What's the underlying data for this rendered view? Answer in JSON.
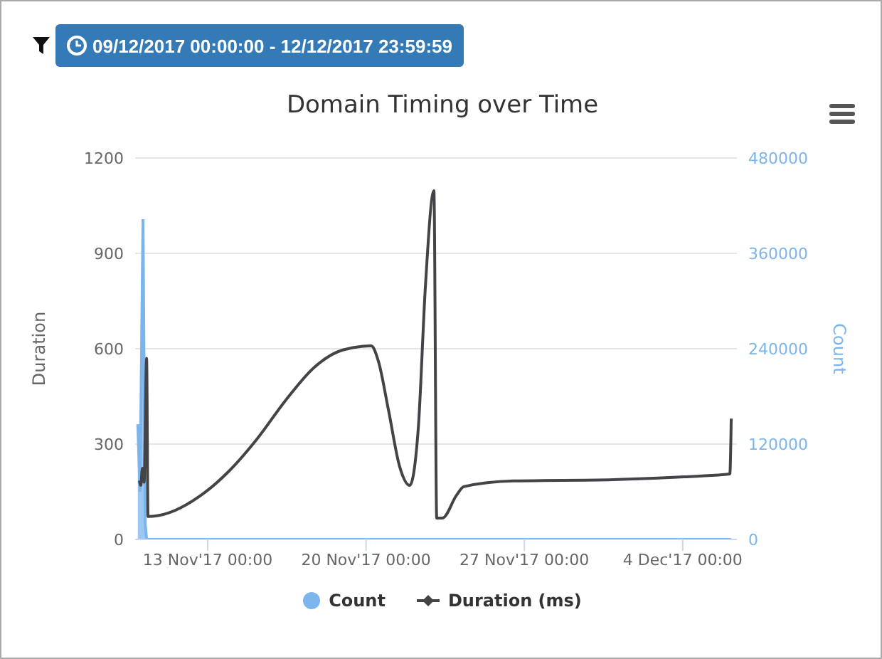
{
  "chart_data": {
    "type": "line",
    "title": "Domain Timing over Time",
    "ylabel": "Duration",
    "y2label": "Count",
    "annotations": [
      "09/12/2017 00:00:00 - 12/12/2017 23:59:59"
    ],
    "xlim": [
      "2017-11-09T19:00",
      "2017-12-06T09:30"
    ],
    "xticks": [
      {
        "value": "2017-11-13T00:00",
        "label": "13 Nov'17 00:00"
      },
      {
        "value": "2017-11-20T00:00",
        "label": "20 Nov'17 00:00"
      },
      {
        "value": "2017-11-27T00:00",
        "label": "27 Nov'17 00:00"
      },
      {
        "value": "2017-12-04T00:00",
        "label": "4 Dec'17 00:00"
      }
    ],
    "ylim": [
      0,
      1200
    ],
    "yticks": [
      0,
      300,
      600,
      900,
      1200
    ],
    "y2lim": [
      0,
      480000
    ],
    "y2ticks": [
      0,
      120000,
      240000,
      360000,
      480000
    ],
    "grid": "y",
    "legend": "bottom",
    "series": [
      {
        "name": "Count",
        "type": "area",
        "axis": "y2",
        "color": "#7cb5ec",
        "x": [
          "2017-11-09T21:50",
          "2017-11-10T00:10",
          "2017-11-10T03:20",
          "2017-11-10T05:40",
          "2017-11-10T07:10",
          "2017-11-15T00:00",
          "2017-11-25T00:00",
          "2017-12-06T03:30"
        ],
        "values": [
          145000,
          60000,
          403000,
          20000,
          0,
          0,
          0,
          0
        ]
      },
      {
        "name": "Duration (ms)",
        "color": "#434348",
        "x": [
          "2017-11-09T23:30",
          "2017-11-10T01:00",
          "2017-11-10T02:40",
          "2017-11-10T04:30",
          "2017-11-10T07:10",
          "2017-11-10T08:40",
          "2017-11-10T19:10",
          "2017-11-12T21:00",
          "2017-11-13T22:35",
          "2017-11-15T04:50",
          "2017-11-16T11:00",
          "2017-11-17T17:15",
          "2017-11-18T23:20",
          "2017-11-20T05:30",
          "2017-11-20T13:10",
          "2017-11-20T23:45",
          "2017-11-21T11:45",
          "2017-11-21T22:20",
          "2017-11-22T07:25",
          "2017-11-22T15:00",
          "2017-11-23T00:00",
          "2017-11-23T03:00",
          "2017-11-23T09:00",
          "2017-11-24T00:00",
          "2017-11-24T07:40",
          "2017-11-26T12:30",
          "2017-11-30T22:00",
          "2017-12-04T01:40",
          "2017-12-06T02:00",
          "2017-12-06T03:30"
        ],
        "values": [
          185,
          170,
          224,
          180,
          570,
          72,
          75,
          148,
          215,
          318,
          439,
          542,
          596,
          609,
          560,
          408,
          228,
          170,
          349,
          797,
          1097,
          67,
          67,
          139,
          166,
          184,
          188,
          197,
          206,
          380
        ]
      }
    ]
  }
}
